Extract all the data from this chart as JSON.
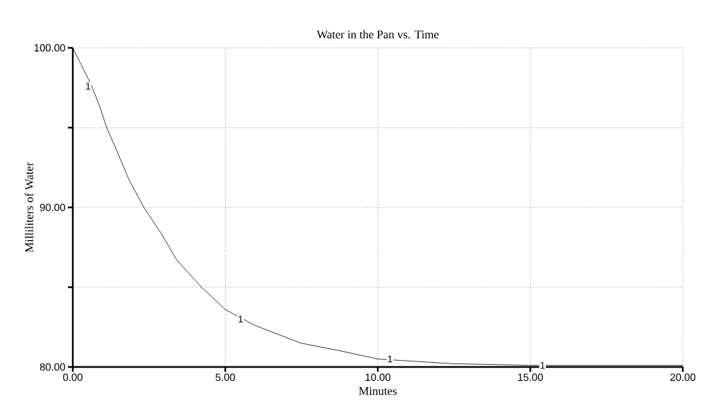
{
  "chart_data": {
    "type": "line",
    "title": "Water in the Pan vs. Time",
    "xlabel": "Minutes",
    "ylabel": "Milliliters of Water",
    "x": [
      0,
      0.6,
      0.89,
      1.11,
      1.41,
      1.85,
      2.33,
      2.89,
      3.41,
      4.22,
      5,
      5.98,
      7.47,
      8.8,
      10,
      12.5,
      15,
      20
    ],
    "series": [
      {
        "color": "#000000",
        "values": [
          100,
          97.7,
          96.3,
          95,
          93.7,
          91.7,
          90,
          88.4,
          86.7,
          85,
          83.6,
          82.6,
          81.5,
          81,
          80.5,
          80.2,
          80.1,
          80.1
        ]
      }
    ],
    "xlim": [
      0,
      20
    ],
    "ylim": [
      80,
      100
    ],
    "xticks": [
      {
        "value": 0,
        "label": "0.00"
      },
      {
        "value": 5,
        "label": "5.00"
      },
      {
        "value": 10,
        "label": "10.00"
      },
      {
        "value": 15,
        "label": "15.00"
      },
      {
        "value": 20,
        "label": "20.00"
      }
    ],
    "yticks": [
      {
        "value": 80,
        "label": "80.00"
      },
      {
        "value": 85,
        "label": null
      },
      {
        "value": 90,
        "label": "90.00"
      },
      {
        "value": 95,
        "label": null
      },
      {
        "value": 100,
        "label": "100.00"
      }
    ],
    "grid": true,
    "marker": "none",
    "line_style": "solid",
    "annotations": [
      {
        "text": "1",
        "x": 0.5,
        "y": 97.6
      },
      {
        "text": "1",
        "x": 5.5,
        "y": 83.0
      },
      {
        "text": "1",
        "x": 10.4,
        "y": 80.5
      },
      {
        "text": "1",
        "x": 15.4,
        "y": 80.1
      }
    ]
  }
}
